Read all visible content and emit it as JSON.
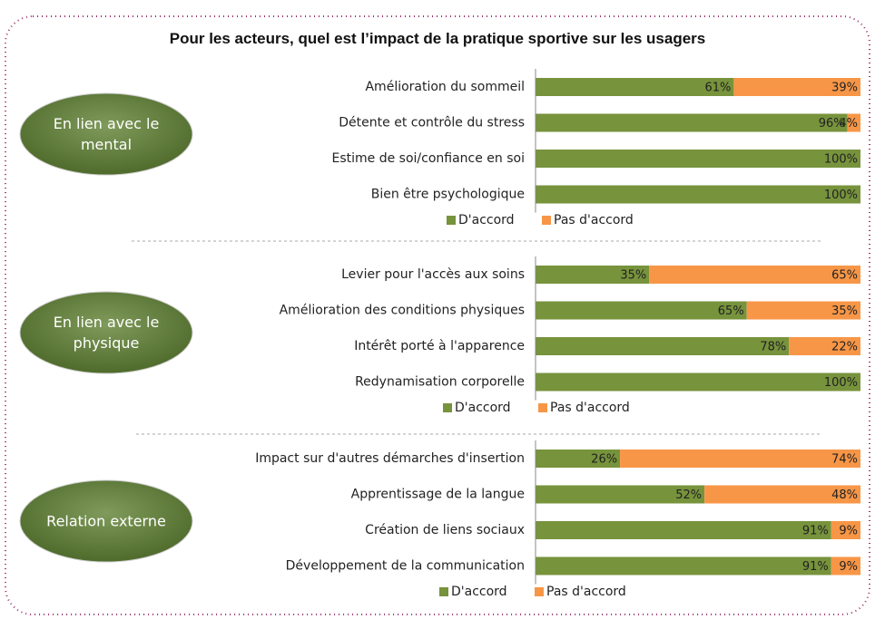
{
  "title": "Pour les acteurs, quel est l’impact de la pratique sportive sur les usagers",
  "chart_data": [
    {
      "type": "bar",
      "orientation": "horizontal",
      "stacked": true,
      "title": "En lien avec le mental",
      "categories": [
        "Amélioration du sommeil",
        "Détente et contrôle du stress",
        "Estime de soi/confiance en soi",
        "Bien être psychologique"
      ],
      "series": [
        {
          "name": "D'accord",
          "color": "#77933c",
          "values": [
            61,
            96,
            100,
            100
          ],
          "value_labels": [
            "61%",
            "96%",
            "100%",
            "100%"
          ]
        },
        {
          "name": "Pas d'accord",
          "color": "#f79646",
          "values": [
            39,
            4,
            0,
            0
          ],
          "value_labels": [
            "39%",
            "4%",
            null,
            null
          ]
        }
      ],
      "xlim": [
        0,
        100
      ],
      "legend": "bottom"
    },
    {
      "type": "bar",
      "orientation": "horizontal",
      "stacked": true,
      "title": "En lien avec le physique",
      "categories": [
        "Levier pour l'accès aux soins",
        "Amélioration des conditions physiques",
        "Intérêt porté à l'apparence",
        "Redynamisation corporelle"
      ],
      "series": [
        {
          "name": "D'accord",
          "color": "#77933c",
          "values": [
            35,
            65,
            78,
            100
          ],
          "value_labels": [
            "35%",
            "65%",
            "78%",
            "100%"
          ]
        },
        {
          "name": "Pas d'accord",
          "color": "#f79646",
          "values": [
            65,
            35,
            22,
            0
          ],
          "value_labels": [
            "65%",
            "35%",
            "22%",
            null
          ]
        }
      ],
      "xlim": [
        0,
        100
      ],
      "legend": "bottom"
    },
    {
      "type": "bar",
      "orientation": "horizontal",
      "stacked": true,
      "title": "Relation externe",
      "categories": [
        "Impact sur d'autres démarches d'insertion",
        "Apprentissage de la langue",
        "Création de liens sociaux",
        "Développement de la communication"
      ],
      "series": [
        {
          "name": "D'accord",
          "color": "#77933c",
          "values": [
            26,
            52,
            91,
            91
          ],
          "value_labels": [
            "26%",
            "52%",
            "91%",
            "91%"
          ]
        },
        {
          "name": "Pas d'accord",
          "color": "#f79646",
          "values": [
            74,
            48,
            9,
            9
          ],
          "value_labels": [
            "74%",
            "48%",
            "9%",
            "9%"
          ]
        }
      ],
      "xlim": [
        0,
        100
      ],
      "legend": "bottom"
    }
  ]
}
